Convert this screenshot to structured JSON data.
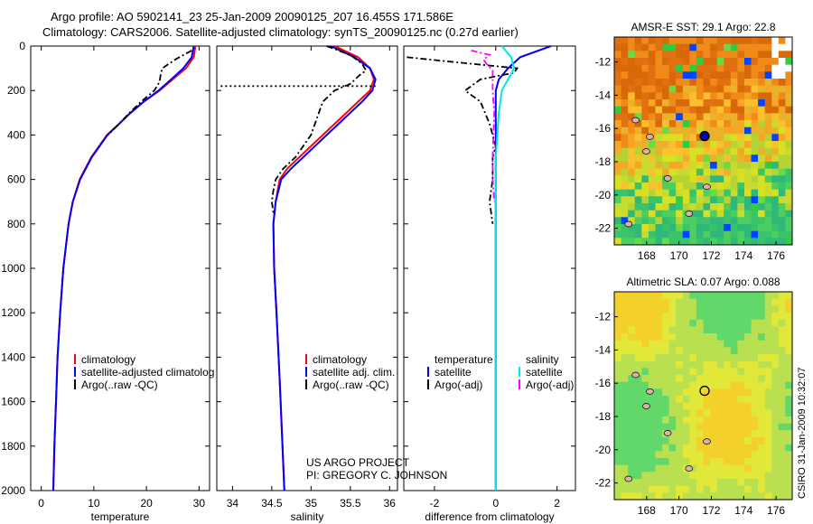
{
  "header": {
    "line1": "Argo profile: AO 5902141_23 25-Jan-2009 20090125_207 16.455S 171.586E",
    "line2": "Climatology: CARS2006. Satellite-adjusted climatology: synTS_20090125.nc (0.27d earlier)"
  },
  "credits": {
    "line1": "US ARGO PROJECT",
    "line2": "PI: GREGORY C. JOHNSON"
  },
  "timestamp": "CSIRO 31-Jan-2009 10:32:07",
  "colors": {
    "climatology": "#ff0000",
    "satellite": "#0000ff",
    "argo": "#000000",
    "sat_salinity": "#00e5ee",
    "argo_salinity": "#ff00ff"
  },
  "chart_data": [
    {
      "type": "line",
      "xlabel": "temperature",
      "ylabel": "",
      "xlim": [
        -2,
        32
      ],
      "ylim": [
        2000,
        0
      ],
      "y_inverted": true,
      "xticks": [
        0,
        10,
        20,
        30
      ],
      "yticks": [
        0,
        200,
        400,
        600,
        800,
        1000,
        1200,
        1400,
        1600,
        1800,
        2000
      ],
      "legend": [
        "climatology",
        "satellite-adjusted climatolog",
        "Argo(..raw -QC)"
      ],
      "series": [
        {
          "name": "climatology",
          "color": "#ff0000",
          "style": "solid",
          "y": [
            0,
            50,
            100,
            150,
            200,
            250,
            300,
            350,
            400,
            500,
            600,
            700,
            800,
            1000,
            1200,
            1400,
            1600,
            1800,
            2000
          ],
          "x": [
            29.3,
            29.0,
            27.5,
            25.0,
            22.5,
            19.5,
            17.0,
            14.8,
            12.5,
            9.5,
            7.3,
            6.0,
            5.2,
            4.2,
            3.6,
            3.1,
            2.8,
            2.5,
            2.3
          ]
        },
        {
          "name": "satellite-adjusted climatology",
          "color": "#0000ff",
          "style": "solid",
          "y": [
            0,
            50,
            100,
            150,
            200,
            250,
            300,
            350,
            400,
            500,
            600,
            700,
            800,
            1000,
            1200,
            1400,
            1600,
            1800,
            2000
          ],
          "x": [
            29.0,
            28.6,
            27.0,
            24.7,
            22.3,
            19.5,
            17.0,
            14.8,
            12.6,
            9.6,
            7.4,
            6.0,
            5.2,
            4.2,
            3.6,
            3.1,
            2.8,
            2.5,
            2.3
          ]
        },
        {
          "name": "Argo(..raw -QC)",
          "color": "#000000",
          "style": "dashdot",
          "y": [
            20,
            60,
            100,
            130,
            160,
            200,
            250,
            300,
            350,
            400
          ],
          "x": [
            28.6,
            25.5,
            23.0,
            22.7,
            22.5,
            21.5,
            19.0,
            16.8,
            14.8,
            12.7
          ]
        }
      ]
    },
    {
      "type": "line",
      "xlabel": "salinity",
      "ylabel": "",
      "xlim": [
        33.8,
        36.1
      ],
      "ylim": [
        2000,
        0
      ],
      "y_inverted": true,
      "xticks": [
        34,
        34.5,
        35,
        35.5,
        36
      ],
      "yticks": [],
      "legend": [
        "climatology",
        "satellite adj. clim.",
        "Argo(..raw -QC)"
      ],
      "series": [
        {
          "name": "climatology",
          "color": "#ff0000",
          "style": "solid",
          "y": [
            0,
            50,
            100,
            150,
            200,
            250,
            300,
            350,
            400,
            450,
            500,
            550,
            600,
            700,
            800,
            1000,
            1200,
            1500,
            2000
          ],
          "x": [
            35.3,
            35.6,
            35.75,
            35.8,
            35.75,
            35.6,
            35.45,
            35.3,
            35.15,
            35.0,
            34.85,
            34.7,
            34.6,
            34.55,
            34.52,
            34.53,
            34.56,
            34.6,
            34.66
          ]
        },
        {
          "name": "satellite adj. clim.",
          "color": "#0000ff",
          "style": "solid",
          "y": [
            0,
            50,
            100,
            150,
            200,
            250,
            300,
            350,
            400,
            450,
            500,
            550,
            600,
            700,
            800,
            1000,
            1200,
            1500,
            2000
          ],
          "x": [
            35.25,
            35.55,
            35.75,
            35.82,
            35.78,
            35.65,
            35.5,
            35.35,
            35.2,
            35.05,
            34.9,
            34.75,
            34.62,
            34.55,
            34.52,
            34.53,
            34.56,
            34.6,
            34.66
          ]
        },
        {
          "name": "Argo(..raw -QC)",
          "color": "#000000",
          "style": "dashdot",
          "y": [
            0,
            40,
            80,
            110,
            130,
            170,
            200,
            250,
            300,
            400,
            500,
            550,
            600,
            650,
            700,
            750
          ],
          "x": [
            35.2,
            35.5,
            35.65,
            35.7,
            35.62,
            35.5,
            35.3,
            35.15,
            35.1,
            35.0,
            34.8,
            34.65,
            34.55,
            34.52,
            34.5,
            34.52
          ]
        },
        {
          "name": "Argo(..raw -QC) dotted",
          "color": "#000000",
          "style": "dotted",
          "y": [
            180,
            180
          ],
          "x": [
            33.85,
            35.82
          ]
        }
      ]
    },
    {
      "type": "line",
      "xlabel": "difference from climatology",
      "ylabel": "",
      "xlim": [
        -3,
        2.6
      ],
      "ylim": [
        2000,
        0
      ],
      "y_inverted": true,
      "xticks": [
        -2,
        0,
        2
      ],
      "yticks": [],
      "legend": [
        "temperature",
        "satellite",
        "Argo(-adj)",
        "salinity",
        "satellite",
        "Argo(-adj)"
      ],
      "series": [
        {
          "name": "temperature satellite",
          "color": "#0000ff",
          "style": "solid",
          "y": [
            0,
            50,
            100,
            150,
            200,
            300,
            400,
            500,
            700,
            1000,
            1500,
            2000
          ],
          "x": [
            1.8,
            0.8,
            0.4,
            0.1,
            0.0,
            0.0,
            0.0,
            0.0,
            0.0,
            0.0,
            0.0,
            0.0
          ]
        },
        {
          "name": "temperature Argo(-adj)",
          "color": "#000000",
          "style": "dashdot",
          "y": [
            50,
            70,
            100,
            120,
            150,
            200,
            250,
            350,
            400,
            450,
            500,
            600,
            700,
            800
          ],
          "x": [
            -2.9,
            -1.5,
            0.7,
            0.6,
            -0.5,
            -1.0,
            -0.5,
            -0.2,
            -0.1,
            0.0,
            -0.1,
            -0.1,
            -0.2,
            -0.1
          ]
        },
        {
          "name": "salinity satellite",
          "color": "#00e5ee",
          "style": "solid",
          "y": [
            0,
            50,
            100,
            150,
            200,
            300,
            400,
            500,
            700,
            1000,
            1500,
            2000
          ],
          "x": [
            0.2,
            0.5,
            0.6,
            0.4,
            0.2,
            0.1,
            0.05,
            0.0,
            0.0,
            0.0,
            0.0,
            0.0
          ]
        },
        {
          "name": "salinity Argo(-adj)",
          "color": "#ff00ff",
          "style": "dashdot",
          "y": [
            20,
            40,
            60,
            80,
            110,
            150,
            200,
            300,
            500,
            600,
            700
          ],
          "x": [
            -0.8,
            -0.2,
            -0.4,
            -0.3,
            -0.1,
            -0.1,
            -0.1,
            -0.05,
            -0.1,
            -0.1,
            -0.05
          ]
        }
      ]
    },
    {
      "type": "heatmap",
      "title": "AMSR-E SST: 29.1 Argo: 22.8",
      "xlim": [
        166,
        177
      ],
      "ylim": [
        -23,
        -10.5
      ],
      "xticks": [
        168,
        170,
        172,
        174,
        176
      ],
      "yticks": [
        -12,
        -14,
        -16,
        -18,
        -20,
        -22
      ],
      "marker": {
        "x": 171.586,
        "y": -16.455
      }
    },
    {
      "type": "heatmap",
      "title": "Altimetric SLA: 0.07 Argo: 0.088",
      "xlim": [
        166,
        177
      ],
      "ylim": [
        -23,
        -10.5
      ],
      "xticks": [
        168,
        170,
        172,
        174,
        176
      ],
      "yticks": [
        -12,
        -14,
        -16,
        -18,
        -20,
        -22
      ],
      "marker": {
        "x": 171.586,
        "y": -16.455
      }
    }
  ]
}
